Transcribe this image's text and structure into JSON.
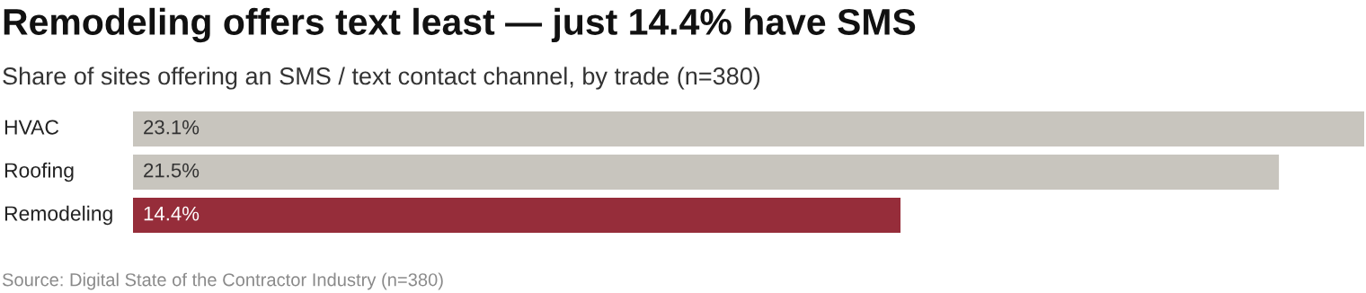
{
  "chart_data": {
    "type": "bar",
    "orientation": "horizontal",
    "title": "Remodeling offers text least — just 14.4% have SMS",
    "subtitle": "Share of sites offering an SMS / text contact channel, by trade (n=380)",
    "categories": [
      "HVAC",
      "Roofing",
      "Remodeling"
    ],
    "values": [
      23.1,
      21.5,
      14.4
    ],
    "colors": [
      "#c8c5be",
      "#c8c5be",
      "#962d3a"
    ],
    "value_labels": [
      "23.1%",
      "21.5%",
      "14.4%"
    ],
    "annotations": [
      "Source: Digital State of the Contractor Industry (n=380)"
    ]
  }
}
